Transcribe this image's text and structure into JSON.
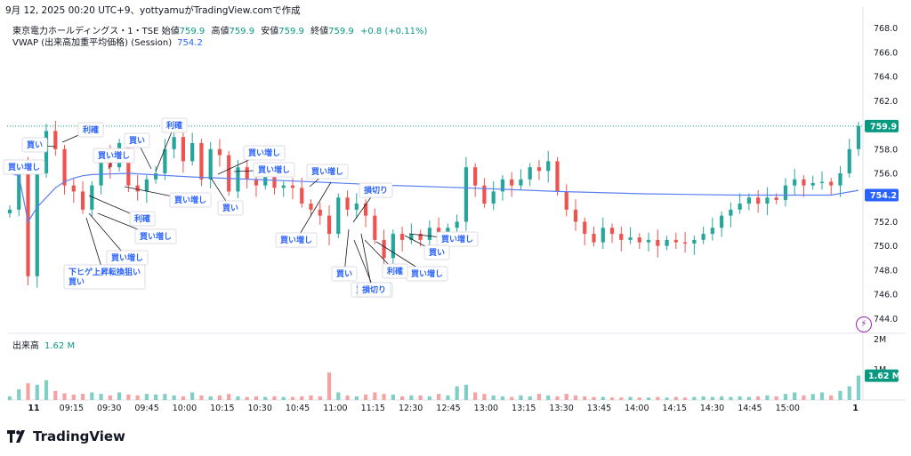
{
  "caption": "9月 12, 2025 00:20 UTC+9、yottyamuがTradingView.comで作成",
  "legend": {
    "symbol": "東京電力ホールディングス・1・TSE",
    "open_label": "始値",
    "open": "759.9",
    "high_label": "高値",
    "high": "759.9",
    "low_label": "安値",
    "low": "759.9",
    "close_label": "終値",
    "close": "759.9",
    "change": "+0.8 (+0.11%)",
    "vwap_label": "VWAP (出来高加重平均価格) (Session)",
    "vwap_value": "754.2",
    "volume_label": "出来高",
    "volume_value": "1.62 M"
  },
  "logo_text": "TradingView",
  "colors": {
    "up": "#26a69a",
    "down": "#ef5350",
    "vwap": "#5b7ff2",
    "vol_up": "#80cfc4",
    "vol_down": "#f4a3a2",
    "last_price": "#089981",
    "vwap_tag": "#2962ff"
  },
  "chart_data": {
    "type": "candlestick",
    "price_axis": {
      "min": 743,
      "max": 769,
      "ticks": [
        744,
        746,
        748,
        750,
        752,
        754,
        756,
        758,
        760,
        762,
        764,
        766,
        768
      ],
      "labels": [
        "744.0",
        "746.0",
        "748.0",
        "750.0",
        "752.0",
        "754.0",
        "756.0",
        "758.0",
        "760.0",
        "762.0",
        "764.0",
        "766.0",
        "768.0"
      ]
    },
    "volume_axis": {
      "max": 2.1,
      "ticks": [
        1,
        2
      ],
      "labels": [
        "1M",
        "2M"
      ]
    },
    "time_axis": {
      "labels": [
        "11",
        "09:15",
        "09:30",
        "09:45",
        "10:00",
        "10:15",
        "10:30",
        "10:45",
        "11:00",
        "11:15",
        "12:30",
        "12:45",
        "13:00",
        "13:15",
        "13:30",
        "13:45",
        "14:00",
        "14:15",
        "14:30",
        "14:45",
        "15:00",
        "1"
      ],
      "start_index": [
        0,
        5,
        10,
        15,
        20,
        25,
        30,
        35,
        40,
        45,
        50,
        55,
        60,
        65,
        70,
        75,
        80,
        85,
        90,
        95,
        100,
        109
      ]
    },
    "last_price": {
      "value": 759.9,
      "label": "759.9"
    },
    "vwap_tag": {
      "value": 754.2,
      "label": "754.2"
    },
    "price_anchors": [
      [
        0,
        753.0
      ],
      [
        1,
        756.5
      ],
      [
        2,
        747.5
      ],
      [
        3,
        756.0
      ],
      [
        4,
        759.5
      ],
      [
        5,
        758.0
      ],
      [
        6,
        755.0
      ],
      [
        7,
        754.5
      ],
      [
        8,
        753.0
      ],
      [
        9,
        755.0
      ],
      [
        10,
        757.5
      ],
      [
        11,
        756.5
      ],
      [
        12,
        758.5
      ],
      [
        13,
        755.0
      ],
      [
        14,
        754.5
      ],
      [
        15,
        755.5
      ],
      [
        16,
        756.0
      ],
      [
        17,
        758.0
      ],
      [
        18,
        759.0
      ],
      [
        19,
        757.0
      ],
      [
        20,
        758.5
      ],
      [
        21,
        755.5
      ],
      [
        22,
        758.0
      ],
      [
        23,
        757.5
      ],
      [
        24,
        754.5
      ],
      [
        25,
        756.5
      ],
      [
        26,
        755.5
      ],
      [
        27,
        755.0
      ],
      [
        28,
        756.0
      ],
      [
        29,
        754.8
      ],
      [
        30,
        755.0
      ],
      [
        31,
        754.8
      ],
      [
        32,
        753.5
      ],
      [
        33,
        753.0
      ],
      [
        34,
        752.5
      ],
      [
        35,
        751.0
      ],
      [
        36,
        754.0
      ],
      [
        37,
        753.0
      ],
      [
        38,
        753.5
      ],
      [
        39,
        752.5
      ],
      [
        40,
        750.5
      ],
      [
        41,
        749.0
      ],
      [
        42,
        751.0
      ],
      [
        43,
        750.5
      ],
      [
        44,
        751.0
      ],
      [
        45,
        750.5
      ],
      [
        46,
        751.5
      ],
      [
        47,
        750.8
      ],
      [
        48,
        751.5
      ],
      [
        49,
        752.0
      ],
      [
        50,
        756.5
      ],
      [
        51,
        755.0
      ],
      [
        52,
        753.5
      ],
      [
        53,
        754.5
      ],
      [
        54,
        755.5
      ],
      [
        55,
        755.0
      ],
      [
        56,
        755.5
      ],
      [
        57,
        756.5
      ],
      [
        58,
        756.2
      ],
      [
        59,
        757.0
      ],
      [
        60,
        754.5
      ],
      [
        61,
        753.0
      ],
      [
        62,
        752.0
      ],
      [
        63,
        751.0
      ],
      [
        64,
        750.3
      ],
      [
        65,
        751.5
      ],
      [
        66,
        751.0
      ],
      [
        67,
        750.5
      ],
      [
        68,
        750.7
      ],
      [
        69,
        750.3
      ],
      [
        70,
        750.5
      ],
      [
        71,
        750.0
      ],
      [
        72,
        750.5
      ],
      [
        73,
        750.3
      ],
      [
        74,
        750.2
      ],
      [
        75,
        750.5
      ],
      [
        76,
        751.0
      ],
      [
        77,
        751.5
      ],
      [
        78,
        752.5
      ],
      [
        79,
        753.0
      ],
      [
        80,
        753.5
      ],
      [
        81,
        754.0
      ],
      [
        82,
        753.5
      ],
      [
        83,
        754.0
      ],
      [
        84,
        753.8
      ],
      [
        85,
        755.0
      ],
      [
        86,
        755.5
      ],
      [
        87,
        755.0
      ],
      [
        88,
        755.2
      ],
      [
        89,
        755.3
      ],
      [
        90,
        755.0
      ],
      [
        91,
        756.0
      ],
      [
        92,
        758.0
      ],
      [
        93,
        759.9
      ]
    ],
    "vwap_points": [
      [
        0,
        756.0
      ],
      [
        1,
        755.8
      ],
      [
        2,
        752.0
      ],
      [
        3,
        753.2
      ],
      [
        4,
        754.0
      ],
      [
        5,
        754.8
      ],
      [
        6,
        755.3
      ],
      [
        7,
        755.6
      ],
      [
        8,
        755.8
      ],
      [
        9,
        755.9
      ],
      [
        13,
        756.0
      ],
      [
        20,
        755.7
      ],
      [
        30,
        755.4
      ],
      [
        36,
        755.2
      ],
      [
        42,
        755.0
      ],
      [
        50,
        754.8
      ],
      [
        60,
        754.5
      ],
      [
        70,
        754.3
      ],
      [
        80,
        754.2
      ],
      [
        90,
        754.2
      ],
      [
        93,
        754.6
      ]
    ],
    "volume_profile": [
      [
        0,
        0.12
      ],
      [
        1,
        0.35
      ],
      [
        2,
        0.55
      ],
      [
        3,
        0.5
      ],
      [
        4,
        0.65
      ],
      [
        5,
        0.3
      ],
      [
        6,
        0.22
      ],
      [
        7,
        0.18
      ],
      [
        8,
        0.2
      ],
      [
        9,
        0.25
      ],
      [
        10,
        0.2
      ],
      [
        11,
        0.15
      ],
      [
        12,
        0.25
      ],
      [
        13,
        0.18
      ],
      [
        14,
        0.15
      ],
      [
        15,
        0.2
      ],
      [
        16,
        0.18
      ],
      [
        17,
        0.2
      ],
      [
        18,
        0.15
      ],
      [
        19,
        0.12
      ],
      [
        20,
        0.25
      ],
      [
        21,
        0.15
      ],
      [
        22,
        0.12
      ],
      [
        23,
        0.15
      ],
      [
        24,
        0.2
      ],
      [
        25,
        0.12
      ],
      [
        26,
        0.1
      ],
      [
        27,
        0.12
      ],
      [
        28,
        0.1
      ],
      [
        29,
        0.12
      ],
      [
        30,
        0.1
      ],
      [
        31,
        0.1
      ],
      [
        32,
        0.12
      ],
      [
        33,
        0.15
      ],
      [
        34,
        0.12
      ],
      [
        35,
        0.9
      ],
      [
        36,
        0.25
      ],
      [
        37,
        0.15
      ],
      [
        38,
        0.12
      ],
      [
        39,
        0.18
      ],
      [
        40,
        0.25
      ],
      [
        41,
        0.2
      ],
      [
        42,
        0.18
      ],
      [
        43,
        0.12
      ],
      [
        44,
        0.15
      ],
      [
        45,
        0.15
      ],
      [
        46,
        0.12
      ],
      [
        47,
        0.2
      ],
      [
        48,
        0.15
      ],
      [
        49,
        0.45
      ],
      [
        50,
        0.5
      ],
      [
        51,
        0.25
      ],
      [
        52,
        0.2
      ],
      [
        53,
        0.15
      ],
      [
        54,
        0.12
      ],
      [
        55,
        0.1
      ],
      [
        56,
        0.15
      ],
      [
        57,
        0.12
      ],
      [
        58,
        0.2
      ],
      [
        59,
        0.15
      ],
      [
        60,
        0.12
      ],
      [
        61,
        0.2
      ],
      [
        62,
        0.15
      ],
      [
        63,
        0.12
      ],
      [
        64,
        0.1
      ],
      [
        65,
        0.1
      ],
      [
        66,
        0.08
      ],
      [
        67,
        0.08
      ],
      [
        68,
        0.1
      ],
      [
        69,
        0.08
      ],
      [
        70,
        0.08
      ],
      [
        71,
        0.1
      ],
      [
        72,
        0.08
      ],
      [
        73,
        0.1
      ],
      [
        74,
        0.08
      ],
      [
        75,
        0.1
      ],
      [
        76,
        0.12
      ],
      [
        77,
        0.1
      ],
      [
        78,
        0.12
      ],
      [
        79,
        0.1
      ],
      [
        80,
        0.12
      ],
      [
        81,
        0.1
      ],
      [
        82,
        0.12
      ],
      [
        83,
        0.15
      ],
      [
        84,
        0.12
      ],
      [
        85,
        0.2
      ],
      [
        86,
        0.25
      ],
      [
        87,
        0.15
      ],
      [
        88,
        0.2
      ],
      [
        89,
        0.25
      ],
      [
        90,
        0.15
      ],
      [
        91,
        0.3
      ],
      [
        92,
        0.45
      ],
      [
        93,
        0.8
      ]
    ],
    "annotations": [
      {
        "text": "買い"
      },
      {
        "text": "買い増し"
      },
      {
        "text": "利確"
      },
      {
        "text": "買い増し"
      },
      {
        "text": "買い"
      },
      {
        "text": "利確"
      },
      {
        "text": "利確"
      },
      {
        "text": "買い増し"
      },
      {
        "text": "買い増し"
      },
      {
        "text": "下ヒゲ上昇転換狙い\n買い"
      },
      {
        "text": "買い増し"
      },
      {
        "text": "買い"
      },
      {
        "text": "買い増し"
      },
      {
        "text": "買い増し"
      },
      {
        "text": "買い増し"
      },
      {
        "text": "買い増し"
      },
      {
        "text": "損切り"
      },
      {
        "text": "買い増し"
      },
      {
        "text": "買い"
      },
      {
        "text": "買い増し"
      },
      {
        "text": "利確"
      },
      {
        "text": "買い増し"
      },
      {
        "text": "買い"
      },
      {
        "text": "損切り"
      }
    ]
  }
}
